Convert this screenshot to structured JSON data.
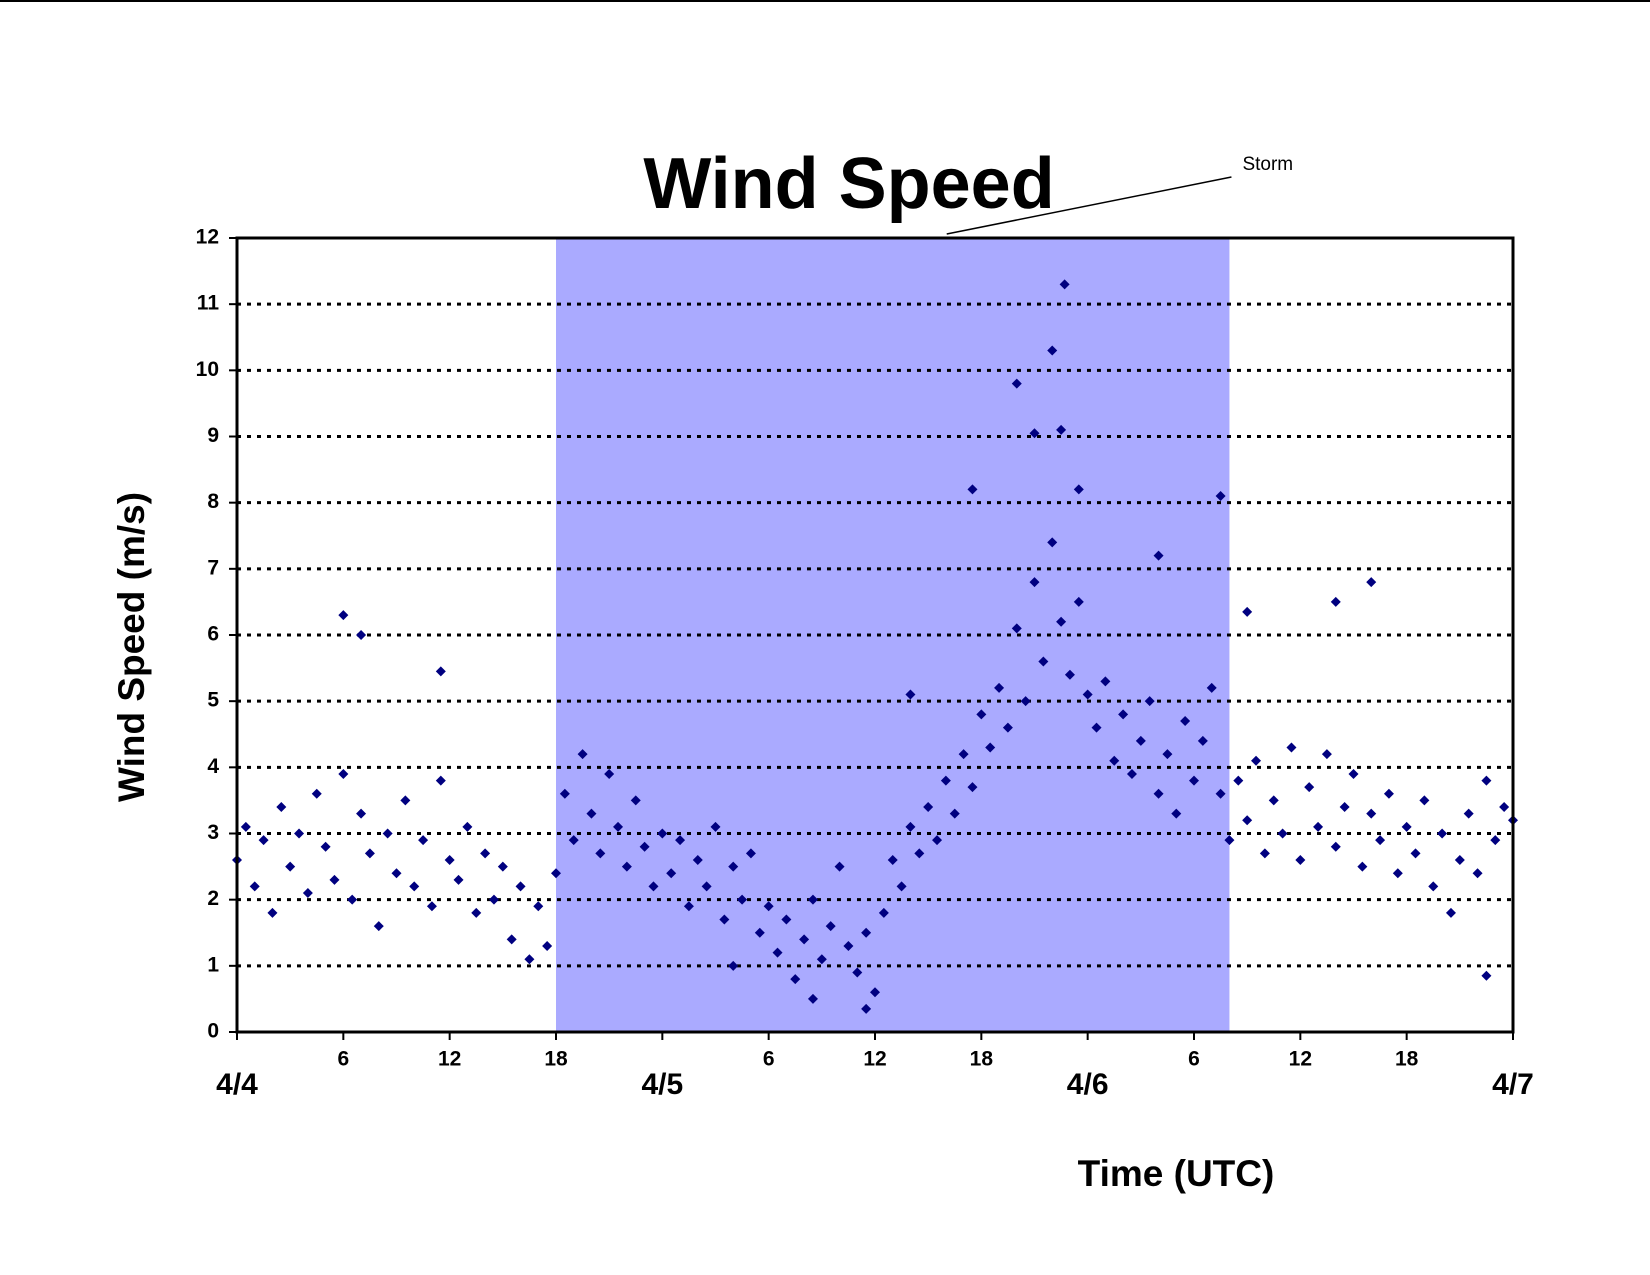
{
  "chart_data": {
    "type": "scatter",
    "title": "Wind Speed",
    "xlabel": "Time (UTC)",
    "ylabel": "Wind Speed (m/s)",
    "shaded_region": {
      "label": "Storm",
      "x": [
        18,
        56
      ],
      "color": "#aaaaff"
    },
    "xlim": [
      0,
      72
    ],
    "ylim": [
      0,
      12
    ],
    "yticks": [
      0,
      1,
      2,
      3,
      4,
      5,
      6,
      7,
      8,
      9,
      10,
      11,
      12
    ],
    "xticks": [
      {
        "value": 6,
        "label": "6"
      },
      {
        "value": 12,
        "label": "12"
      },
      {
        "value": 18,
        "label": "18"
      },
      {
        "value": 30,
        "label": "6"
      },
      {
        "value": 36,
        "label": "12"
      },
      {
        "value": 42,
        "label": "18"
      },
      {
        "value": 54,
        "label": "6"
      },
      {
        "value": 60,
        "label": "12"
      },
      {
        "value": 66,
        "label": "18"
      }
    ],
    "date_ticks": [
      {
        "value": 0,
        "label": "4/4"
      },
      {
        "value": 24,
        "label": "4/5"
      },
      {
        "value": 48,
        "label": "4/6"
      },
      {
        "value": 72,
        "label": "4/7"
      }
    ],
    "grid": true,
    "color": "#000080",
    "x": [
      0,
      0.5,
      1,
      1.5,
      2,
      2.5,
      3,
      3.5,
      4,
      4.5,
      5,
      5.5,
      6,
      6.5,
      7,
      7.5,
      8,
      8.5,
      9,
      9.5,
      10,
      10.5,
      11,
      11.5,
      12,
      12.5,
      13,
      13.5,
      14,
      14.5,
      15,
      15.5,
      16,
      16.5,
      17,
      17.5,
      18,
      18.5,
      19,
      19.5,
      20,
      20.5,
      21,
      21.5,
      22,
      22.5,
      23,
      23.5,
      24,
      24.5,
      25,
      25.5,
      26,
      26.5,
      27,
      27.5,
      28,
      28.5,
      29,
      29.5,
      30,
      30.5,
      31,
      31.5,
      32,
      32.5,
      33,
      33.5,
      34,
      34.5,
      35,
      35.5,
      36,
      36.5,
      37,
      37.5,
      38,
      38.5,
      39,
      39.5,
      40,
      40.5,
      41,
      41.5,
      42,
      42.5,
      43,
      43.5,
      44,
      44.5,
      45,
      45.5,
      46,
      46.5,
      47,
      47.5,
      48,
      48.5,
      49,
      49.5,
      50,
      50.5,
      51,
      51.5,
      52,
      52.5,
      53,
      53.5,
      54,
      54.5,
      55,
      55.5,
      56,
      56.5,
      57,
      57.5,
      58,
      58.5,
      59,
      59.5,
      60,
      60.5,
      61,
      61.5,
      62,
      62.5,
      63,
      63.5,
      64,
      64.5,
      65,
      65.5,
      66,
      66.5,
      67,
      67.5,
      68,
      68.5,
      69,
      69.5,
      70,
      70.5,
      71,
      71.5,
      72,
      6,
      7,
      11.5,
      32.5,
      35.5,
      38,
      44,
      45,
      46,
      46.7,
      46.5,
      41.5,
      47.5,
      55.5,
      57,
      62,
      64,
      28,
      52,
      70.5
    ],
    "values": [
      2.6,
      3.1,
      2.2,
      2.9,
      1.8,
      3.4,
      2.5,
      3.0,
      2.1,
      3.6,
      2.8,
      2.3,
      3.9,
      2.0,
      3.3,
      2.7,
      1.6,
      3.0,
      2.4,
      3.5,
      2.2,
      2.9,
      1.9,
      3.8,
      2.6,
      2.3,
      3.1,
      1.8,
      2.7,
      2.0,
      2.5,
      1.4,
      2.2,
      1.1,
      1.9,
      1.3,
      2.4,
      3.6,
      2.9,
      4.2,
      3.3,
      2.7,
      3.9,
      3.1,
      2.5,
      3.5,
      2.8,
      2.2,
      3.0,
      2.4,
      2.9,
      1.9,
      2.6,
      2.2,
      3.1,
      1.7,
      2.5,
      2.0,
      2.7,
      1.5,
      1.9,
      1.2,
      1.7,
      0.8,
      1.4,
      2.0,
      1.1,
      1.6,
      2.5,
      1.3,
      0.9,
      1.5,
      0.6,
      1.8,
      2.6,
      2.2,
      3.1,
      2.7,
      3.4,
      2.9,
      3.8,
      3.3,
      4.2,
      3.7,
      4.8,
      4.3,
      5.2,
      4.6,
      6.1,
      5.0,
      6.8,
      5.6,
      7.4,
      6.2,
      5.4,
      6.5,
      5.1,
      4.6,
      5.3,
      4.1,
      4.8,
      3.9,
      4.4,
      5.0,
      3.6,
      4.2,
      3.3,
      4.7,
      3.8,
      4.4,
      5.2,
      3.6,
      2.9,
      3.8,
      3.2,
      4.1,
      2.7,
      3.5,
      3.0,
      4.3,
      2.6,
      3.7,
      3.1,
      4.2,
      2.8,
      3.4,
      3.9,
      2.5,
      3.3,
      2.9,
      3.6,
      2.4,
      3.1,
      2.7,
      3.5,
      2.2,
      3.0,
      1.8,
      2.6,
      3.3,
      2.4,
      3.8,
      2.9,
      3.4,
      3.2,
      6.3,
      6.0,
      5.45,
      0.5,
      0.35,
      5.1,
      9.8,
      9.05,
      10.3,
      11.3,
      9.1,
      8.2,
      8.2,
      8.1,
      6.35,
      6.5,
      6.8,
      1.0,
      7.2,
      0.85
    ]
  }
}
